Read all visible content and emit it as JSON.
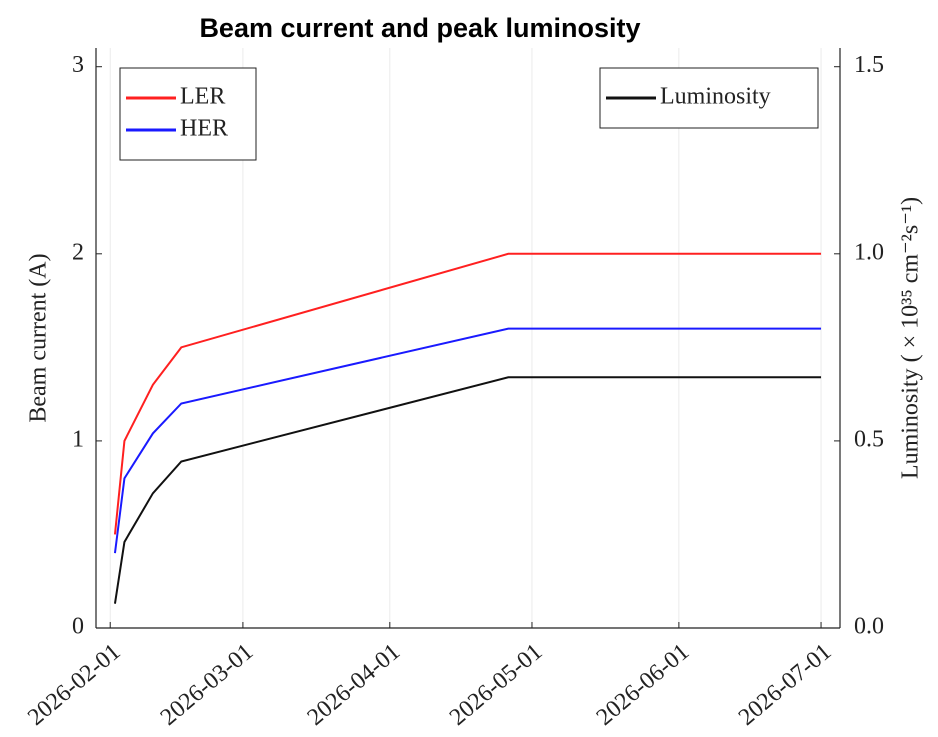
{
  "chart_data": {
    "type": "line",
    "title": "Beam current and peak luminosity",
    "y_label": "Beam current (A)",
    "y2_label": "Luminosity ( × 10³⁵ cm⁻²s⁻¹)",
    "x": [
      "2026-02-02",
      "2026-02-04",
      "2026-02-10",
      "2026-02-16",
      "2026-04-26",
      "2026-07-01"
    ],
    "series": [
      {
        "name": "LER",
        "color": "#ff2020",
        "values": [
          0.5,
          1.0,
          1.3,
          1.5,
          2.0,
          2.0
        ]
      },
      {
        "name": "HER",
        "color": "#1a1aff",
        "values": [
          0.4,
          0.8,
          1.04,
          1.2,
          1.6,
          1.6
        ]
      },
      {
        "name": "Luminosity",
        "color": "#111111",
        "axis": "y2",
        "values": [
          0.065,
          0.23,
          0.36,
          0.445,
          0.67,
          0.67
        ]
      }
    ],
    "xlim": [
      "2026-01-29",
      "2026-07-05"
    ],
    "xticks": [
      "2026-02-01",
      "2026-03-01",
      "2026-04-01",
      "2026-05-01",
      "2026-06-01",
      "2026-07-01"
    ],
    "ylim": [
      0,
      3.1
    ],
    "yticks": [
      0,
      1,
      2,
      3
    ],
    "y2lim": [
      0,
      1.55
    ],
    "y2ticks": [
      {
        "value": 0,
        "label": "0.0"
      },
      {
        "value": 0.5,
        "label": "0.5"
      },
      {
        "value": 1,
        "label": "1.0"
      },
      {
        "value": 1.5,
        "label": "1.5"
      }
    ],
    "grid": "x",
    "legend": "upper left",
    "y2_legend": "upper right"
  }
}
